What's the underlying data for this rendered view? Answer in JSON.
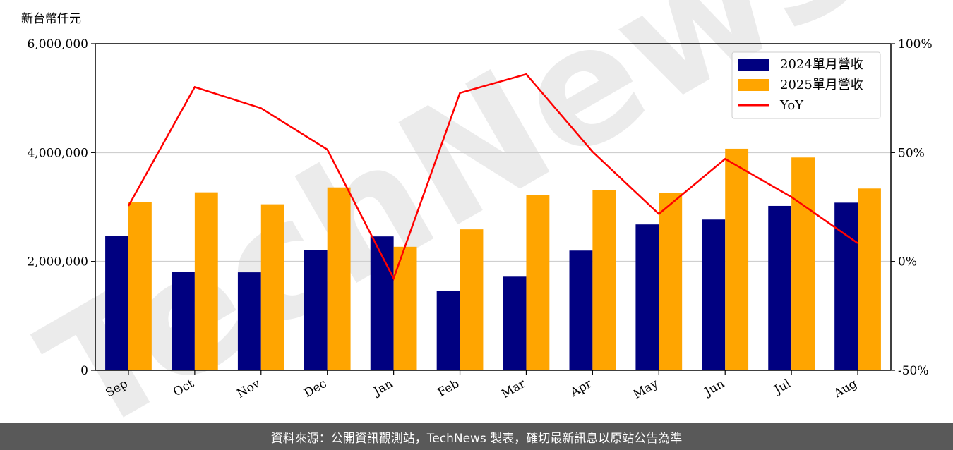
{
  "chart_data": {
    "type": "bar",
    "ylabel": "新台幣仟元",
    "categories": [
      "Sep",
      "Oct",
      "Nov",
      "Dec",
      "Jan",
      "Feb",
      "Mar",
      "Apr",
      "May",
      "Jun",
      "Jul",
      "Aug"
    ],
    "series": [
      {
        "name": "2024單月營收",
        "type": "bar",
        "color": "#000080",
        "axis": "left",
        "values": [
          2470000,
          1810000,
          1800000,
          2210000,
          2460000,
          1460000,
          1720000,
          2200000,
          2680000,
          2770000,
          3020000,
          3080000
        ]
      },
      {
        "name": "2025單月營收",
        "type": "bar",
        "color": "#FFA500",
        "axis": "left",
        "values": [
          3090000,
          3270000,
          3050000,
          3360000,
          2270000,
          2590000,
          3220000,
          3310000,
          3260000,
          4070000,
          3910000,
          3340000
        ]
      },
      {
        "name": "YoY",
        "type": "line",
        "color": "#FF0000",
        "axis": "right",
        "values": [
          25.5,
          80.1,
          70.4,
          51.4,
          -7.8,
          77.4,
          86.0,
          50.4,
          21.8,
          47.1,
          29.6,
          8.4
        ]
      }
    ],
    "y_left": {
      "range": [
        0,
        6000000
      ],
      "ticks": [
        0,
        2000000,
        4000000,
        6000000
      ],
      "tick_labels": [
        "0",
        "2,000,000",
        "4,000,000",
        "6,000,000"
      ]
    },
    "y_right": {
      "range": [
        -50,
        100
      ],
      "ticks": [
        -50,
        0,
        50,
        100
      ],
      "tick_labels": [
        "-50%",
        "0%",
        "50%",
        "100%"
      ]
    },
    "grid": true,
    "legend_position": "top-right"
  },
  "watermark": "TechNews",
  "footer": {
    "text": "資料來源：公開資訊觀測站，TechNews 製表，確切最新訊息以原站公告為準"
  }
}
